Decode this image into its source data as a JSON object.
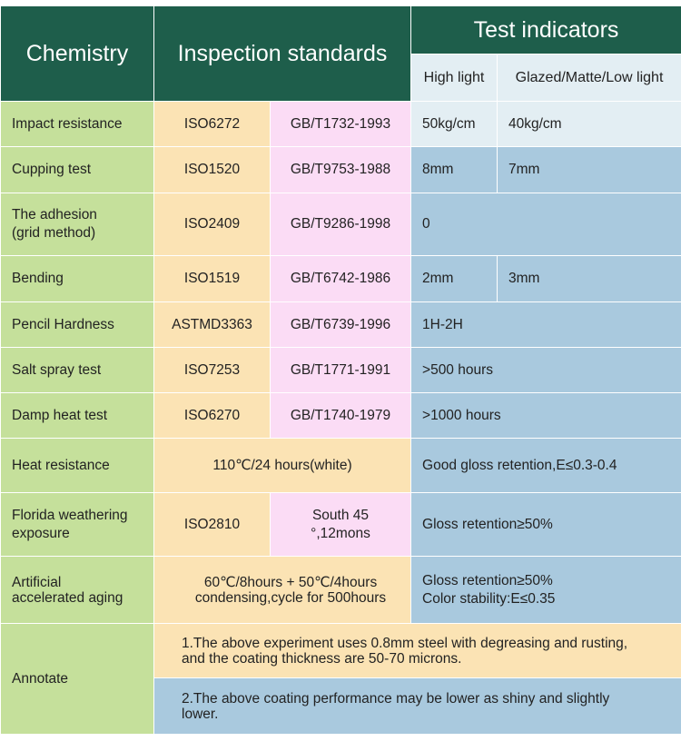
{
  "headers": {
    "chemistry": "Chemistry",
    "standards": "Inspection standards",
    "indicators": "Test indicators",
    "high_light": "High light",
    "glazed": "Glazed/Matte/Low light"
  },
  "rows": [
    {
      "name": "Impact resistance",
      "iso": "ISO6272",
      "gb": "GB/T1732-1993",
      "v1": "50kg/cm",
      "v2": "40kg/cm"
    },
    {
      "name": "Cupping test",
      "iso": "ISO1520",
      "gb": "GB/T9753-1988",
      "v1": "8mm",
      "v2": "7mm"
    },
    {
      "name_line1": "The adhesion",
      "name_line2": "(grid method)",
      "iso": "ISO2409",
      "gb": "GB/T9286-1998",
      "v": "0"
    },
    {
      "name": "Bending",
      "iso": "ISO1519",
      "gb": "GB/T6742-1986",
      "v1": "2mm",
      "v2": "3mm"
    },
    {
      "name": "Pencil Hardness",
      "iso": "ASTMD3363",
      "gb": "GB/T6739-1996",
      "v": "1H-2H"
    },
    {
      "name": "Salt spray test",
      "iso": "ISO7253",
      "gb": "GB/T1771-1991",
      "v": ">500 hours"
    },
    {
      "name": "Damp heat test",
      "iso": "ISO6270",
      "gb": "GB/T1740-1979",
      "v": ">1000 hours"
    },
    {
      "name": "Heat resistance",
      "std": "110℃/24 hours(white)",
      "v": "Good gloss retention,E≤0.3-0.4"
    },
    {
      "name_line1": "Florida weathering",
      "name_line2": "exposure",
      "iso": "ISO2810",
      "gb": "South 45 °,12mons",
      "v": "Gloss retention≥50%"
    },
    {
      "name_line1": "Artificial",
      "name_line2": "accelerated aging",
      "std_line1": "60℃/8hours + 50℃/4hours",
      "std_line2": "condensing,cycle for 500hours",
      "v_line1": "Gloss retention≥50%",
      "v_line2": "Color stability:E≤0.35"
    }
  ],
  "annotate": {
    "label": "Annotate",
    "note1_line1": "1.The above experiment uses 0.8mm steel with degreasing and rusting,",
    "note1_line2": "and the coating thickness are 50-70 microns.",
    "note2_line1": "2.The above coating performance may be lower as shiny and slightly",
    "note2_line2": "lower."
  }
}
